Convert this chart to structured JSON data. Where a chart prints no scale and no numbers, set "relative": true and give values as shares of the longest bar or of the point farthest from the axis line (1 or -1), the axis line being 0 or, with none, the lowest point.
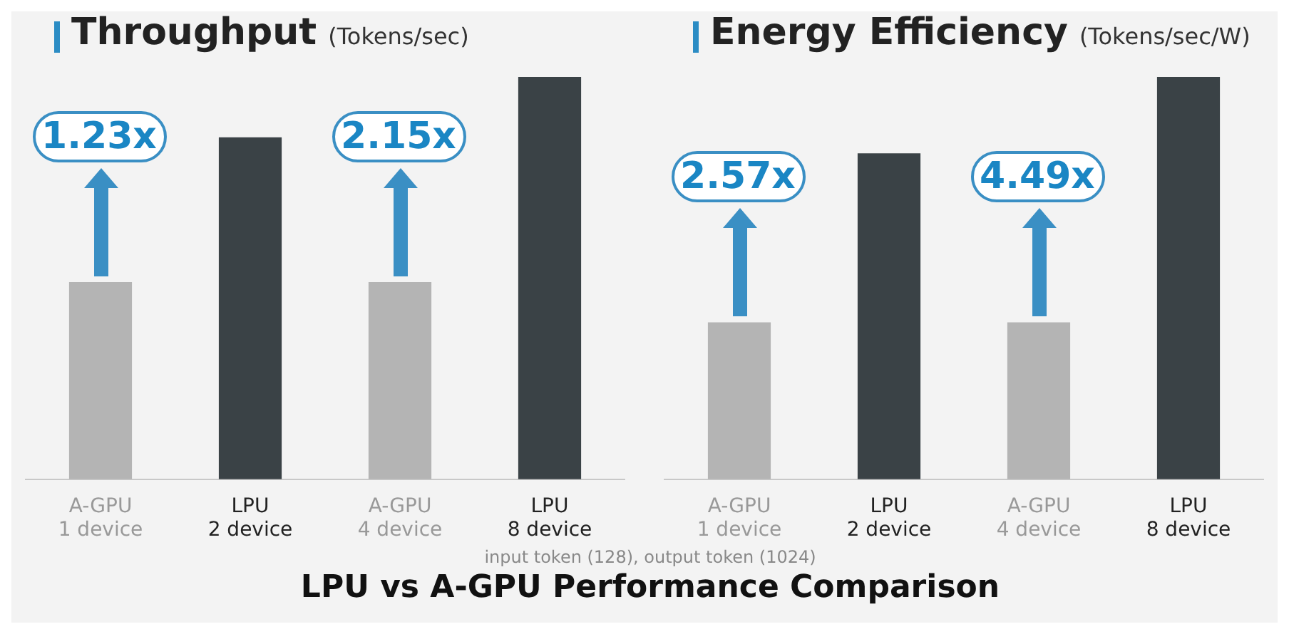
{
  "chart_data": [
    {
      "type": "bar",
      "title": "Throughput",
      "subtitle": "(Tokens/sec)",
      "relative": true,
      "categories": [
        "A-GPU\n1 device",
        "LPU\n2 device",
        "A-GPU\n4 device",
        "LPU\n8 device"
      ],
      "values": [
        0.49,
        0.85,
        0.49,
        1
      ],
      "colors": [
        "#b4b4b4",
        "#3a4246",
        "#b4b4b4",
        "#3a4246"
      ],
      "annotations": [
        "1.23x",
        "2.15x"
      ]
    },
    {
      "type": "bar",
      "title": "Energy Efficiency",
      "subtitle": "(Tokens/sec/W)",
      "relative": true,
      "categories": [
        "A-GPU\n1 device",
        "LPU\n2 device",
        "A-GPU\n4 device",
        "LPU\n8 device"
      ],
      "values": [
        0.39,
        0.81,
        0.39,
        1
      ],
      "colors": [
        "#b4b4b4",
        "#3a4246",
        "#b4b4b4",
        "#3a4246"
      ],
      "annotations": [
        "2.57x",
        "4.49x",
        "input token (128), output token (1024)",
        "LPU vs A-GPU Performance Comparison"
      ]
    }
  ]
}
